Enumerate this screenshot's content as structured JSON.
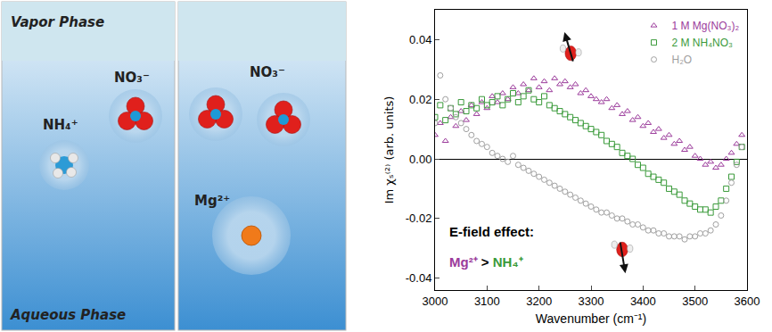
{
  "diagram": {
    "vapor_label": "Vapor Phase",
    "aqueous_label": "Aqueous Phase",
    "panels": [
      {
        "ions": [
          "NO₃⁻",
          "NH₄⁺"
        ]
      },
      {
        "ions": [
          "NO₃⁻",
          "NO₃⁻",
          "Mg²⁺"
        ]
      }
    ]
  },
  "chart_data": {
    "type": "scatter",
    "x_label": "Wavenumber (cm⁻¹)",
    "y_label": "Im χₛ⁽²⁾ (arb. units)",
    "x": [
      3000,
      3010,
      3020,
      3030,
      3040,
      3050,
      3060,
      3070,
      3080,
      3090,
      3100,
      3110,
      3120,
      3130,
      3140,
      3150,
      3160,
      3170,
      3180,
      3190,
      3200,
      3210,
      3220,
      3230,
      3240,
      3250,
      3260,
      3270,
      3280,
      3290,
      3300,
      3310,
      3320,
      3330,
      3340,
      3350,
      3360,
      3370,
      3380,
      3390,
      3400,
      3410,
      3420,
      3430,
      3440,
      3450,
      3460,
      3470,
      3480,
      3490,
      3500,
      3510,
      3520,
      3530,
      3540,
      3550,
      3560,
      3570,
      3580,
      3590
    ],
    "series": [
      {
        "name": "1 M Mg(NO₃)₂",
        "color": "#9b3b9b",
        "marker": "triangle-up-open",
        "values": [
          0.008,
          0.012,
          0.006,
          0.014,
          0.011,
          0.016,
          0.013,
          0.018,
          0.015,
          0.019,
          0.017,
          0.021,
          0.019,
          0.022,
          0.02,
          0.024,
          0.022,
          0.025,
          0.023,
          0.027,
          0.024,
          0.026,
          0.023,
          0.027,
          0.025,
          0.026,
          0.024,
          0.025,
          0.022,
          0.023,
          0.021,
          0.02,
          0.019,
          0.02,
          0.017,
          0.018,
          0.015,
          0.016,
          0.013,
          0.014,
          0.011,
          0.012,
          0.009,
          0.01,
          0.007,
          0.008,
          0.005,
          0.006,
          0.003,
          0.004,
          0.001,
          0.0,
          -0.002,
          -0.001,
          -0.003,
          -0.002,
          0.0,
          0.002,
          0.005,
          0.008
        ]
      },
      {
        "name": "2 M NH₄NO₃",
        "color": "#3a9a3a",
        "marker": "square-open",
        "values": [
          0.014,
          0.018,
          0.013,
          0.017,
          0.015,
          0.019,
          0.016,
          0.018,
          0.017,
          0.02,
          0.018,
          0.019,
          0.021,
          0.018,
          0.02,
          0.022,
          0.019,
          0.021,
          0.023,
          0.02,
          0.019,
          0.021,
          0.018,
          0.017,
          0.016,
          0.015,
          0.014,
          0.013,
          0.012,
          0.011,
          0.01,
          0.009,
          0.008,
          0.006,
          0.005,
          0.004,
          0.002,
          0.001,
          0.0,
          -0.002,
          -0.003,
          -0.005,
          -0.006,
          -0.007,
          -0.008,
          -0.01,
          -0.011,
          -0.012,
          -0.014,
          -0.015,
          -0.016,
          -0.017,
          -0.017,
          -0.018,
          -0.016,
          -0.014,
          -0.01,
          -0.006,
          -0.001,
          0.004
        ]
      },
      {
        "name": "H₂O",
        "color": "#a0a0a0",
        "marker": "circle-open",
        "values": [
          0.012,
          0.028,
          0.02,
          0.017,
          0.014,
          0.012,
          0.01,
          0.008,
          0.006,
          0.005,
          0.004,
          0.002,
          0.001,
          0.0,
          -0.001,
          0.001,
          -0.002,
          -0.003,
          -0.004,
          -0.005,
          -0.006,
          -0.007,
          -0.008,
          -0.009,
          -0.01,
          -0.011,
          -0.012,
          -0.013,
          -0.014,
          -0.015,
          -0.016,
          -0.017,
          -0.018,
          -0.018,
          -0.019,
          -0.02,
          -0.02,
          -0.021,
          -0.022,
          -0.022,
          -0.023,
          -0.024,
          -0.024,
          -0.025,
          -0.025,
          -0.026,
          -0.026,
          -0.026,
          -0.027,
          -0.026,
          -0.026,
          -0.025,
          -0.025,
          -0.024,
          -0.022,
          -0.019,
          -0.014,
          -0.008,
          -0.002,
          0.004
        ]
      }
    ],
    "xlim": [
      3000,
      3600
    ],
    "xticks": [
      3000,
      3100,
      3200,
      3300,
      3400,
      3500,
      3600
    ],
    "ylim": [
      -0.044,
      0.05
    ],
    "yticks": [
      -0.04,
      -0.02,
      {
        "value": 0,
        "label": "0.00"
      },
      0.02,
      0.04
    ],
    "grid": false,
    "legend": "top right",
    "annotations": [
      {
        "text": "E-field effect:"
      },
      {
        "parts": [
          "Mg²⁺",
          " > ",
          "NH₄⁺"
        ]
      }
    ]
  }
}
